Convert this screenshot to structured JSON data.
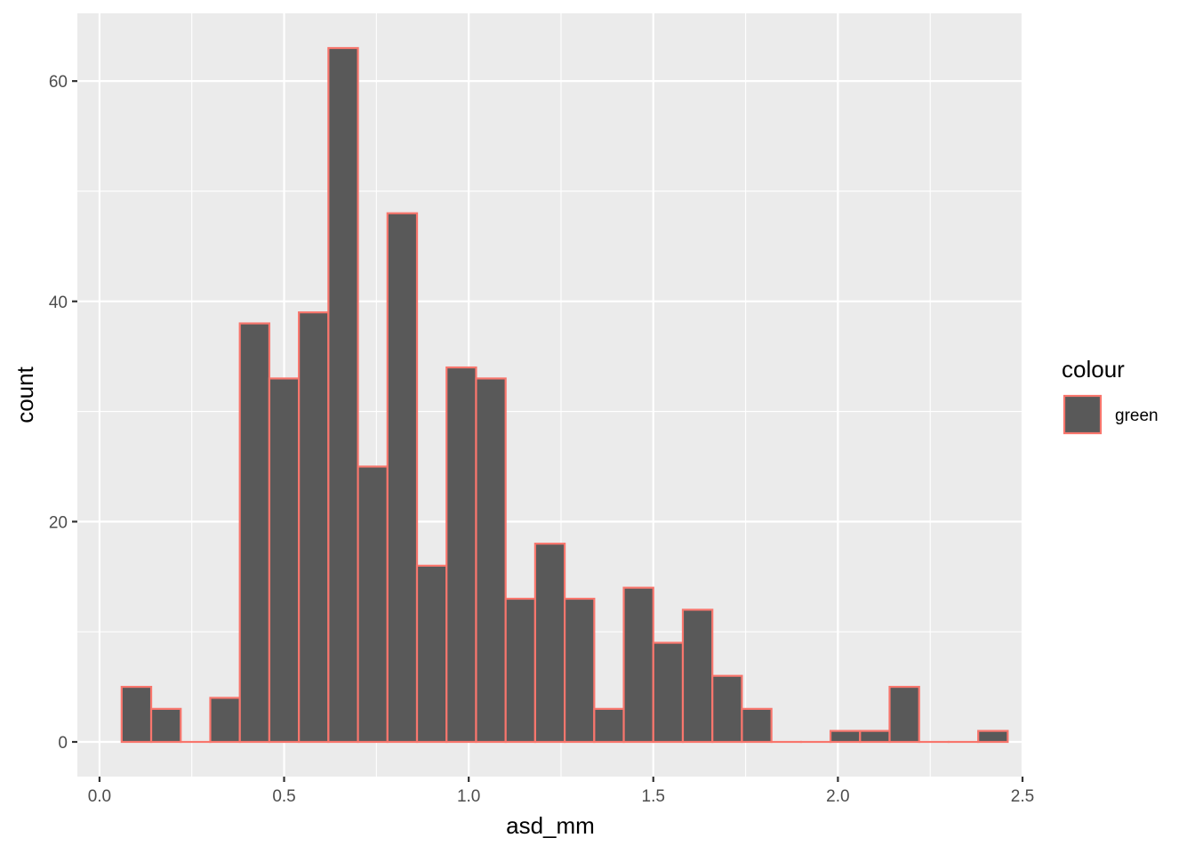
{
  "chart_data": {
    "type": "bar",
    "subtype": "histogram",
    "xlabel": "asd_mm",
    "ylabel": "count",
    "xlim": [
      -0.06,
      2.5
    ],
    "ylim": [
      -3.15,
      66.15
    ],
    "x_ticks": [
      0.0,
      0.5,
      1.0,
      1.5,
      2.0,
      2.5
    ],
    "x_tick_labels": [
      "0.0",
      "0.5",
      "1.0",
      "1.5",
      "2.0",
      "2.5"
    ],
    "y_ticks": [
      0,
      20,
      40,
      60
    ],
    "y_tick_labels": [
      "0",
      "20",
      "40",
      "60"
    ],
    "bin_start": 0.06,
    "bin_width": 0.08,
    "values": [
      5,
      3,
      0,
      4,
      38,
      33,
      39,
      63,
      25,
      48,
      16,
      34,
      33,
      13,
      18,
      13,
      3,
      14,
      9,
      12,
      6,
      3,
      0,
      0,
      1,
      1,
      5,
      0,
      0,
      1
    ],
    "grid": true,
    "legend": {
      "title": "colour",
      "entries": [
        "green"
      ],
      "position": "right"
    },
    "colors": {
      "panel_background": "#ebebeb",
      "grid": "#ffffff",
      "bar_fill": "#595959",
      "bar_outline": "#f8766d"
    }
  }
}
